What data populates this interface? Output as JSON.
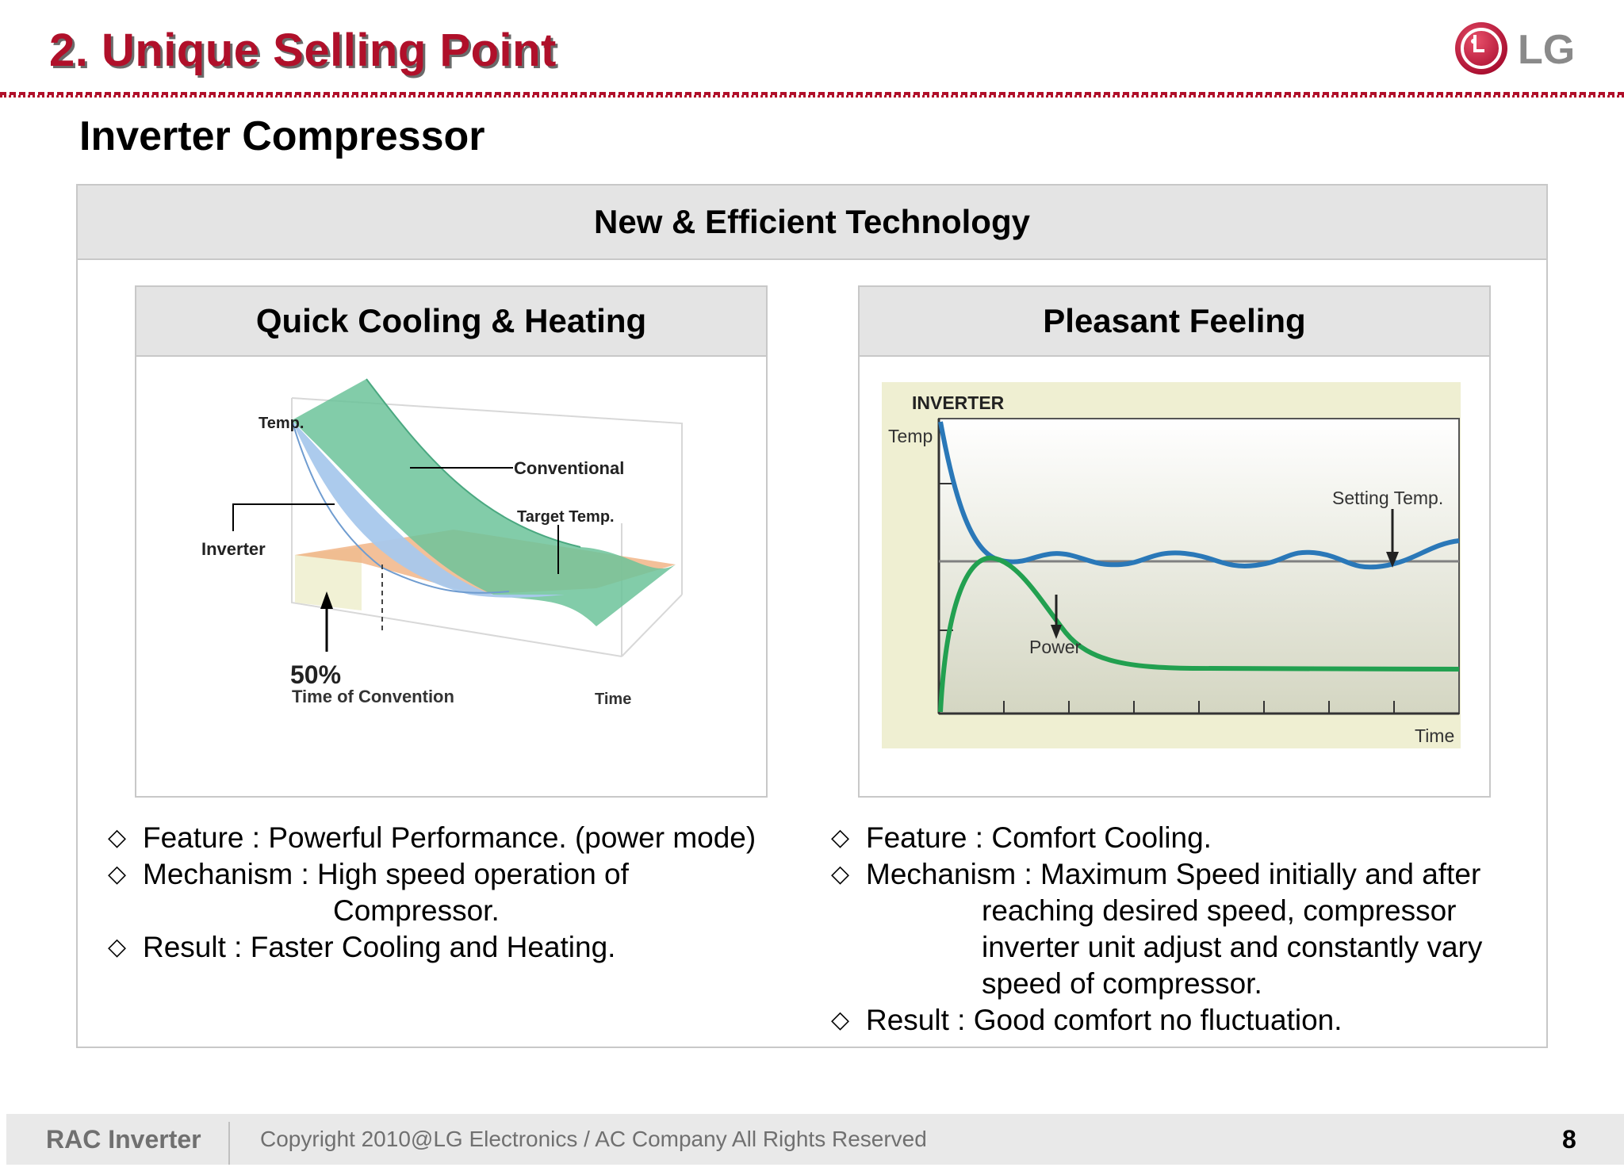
{
  "slide": {
    "title": "2. Unique Selling Point",
    "subtitle": "Inverter Compressor",
    "logo_text": "LG"
  },
  "main": {
    "header": "New & Efficient Technology"
  },
  "left_panel": {
    "header": "Quick Cooling & Heating",
    "figure_labels": {
      "temp": "Temp.",
      "conventional": "Conventional",
      "target_temp": "Target Temp.",
      "inverter": "Inverter",
      "percent": "50%",
      "time_of_convention": "Time of Convention",
      "time": "Time"
    },
    "bullets": [
      {
        "text": "Feature : Powerful Performance. (power mode)"
      },
      {
        "text": "Mechanism : High speed operation of",
        "continuation": [
          "Compressor."
        ]
      },
      {
        "text": "Result : Faster Cooling and Heating."
      }
    ]
  },
  "right_panel": {
    "header": "Pleasant Feeling",
    "figure_labels": {
      "title": "INVERTER",
      "temp": "Temp",
      "setting_temp": "Setting Temp.",
      "power": "Power",
      "time": "Time"
    },
    "bullets": [
      {
        "text": "Feature : Comfort Cooling."
      },
      {
        "text": "Mechanism : Maximum Speed initially and  after",
        "continuation": [
          "reaching desired speed, compressor",
          "inverter unit adjust and constantly vary",
          "speed of compressor."
        ]
      },
      {
        "text": "Result : Good comfort no fluctuation."
      }
    ]
  },
  "footer": {
    "name": "RAC Inverter",
    "copyright": "Copyright 2010@LG Electronics / AC Company All Rights Reserved",
    "page": "8"
  },
  "colors": {
    "title_red": "#b0102a",
    "header_gray": "#e4e4e4",
    "inverter_blue": "#2a78b8",
    "power_green": "#22a050"
  },
  "icons": {
    "bullet": "diamond-outline-icon",
    "logo": "lg-logo-icon"
  }
}
